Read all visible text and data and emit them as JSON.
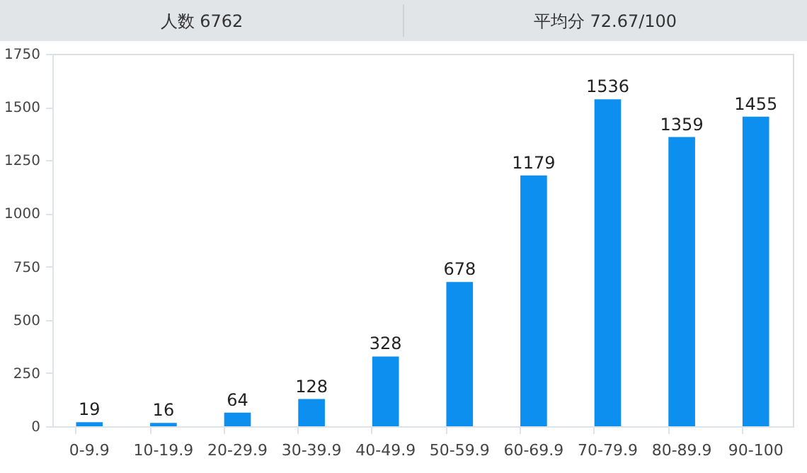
{
  "chart_data": {
    "type": "bar",
    "annotations": [
      "人数 6762",
      "平均分 72.67/100"
    ],
    "categories": [
      "0-9.9",
      "10-19.9",
      "20-29.9",
      "30-39.9",
      "40-49.9",
      "50-59.9",
      "60-69.9",
      "70-79.9",
      "80-89.9",
      "90-100"
    ],
    "values": [
      19,
      16,
      64,
      128,
      328,
      678,
      1179,
      1536,
      1359,
      1455
    ],
    "color": "#0d8ff0",
    "ylim": [
      0,
      1750
    ],
    "yticks": [
      0,
      250,
      500,
      750,
      1000,
      1250,
      1500,
      1750
    ],
    "grid": false,
    "data_labels": true
  }
}
